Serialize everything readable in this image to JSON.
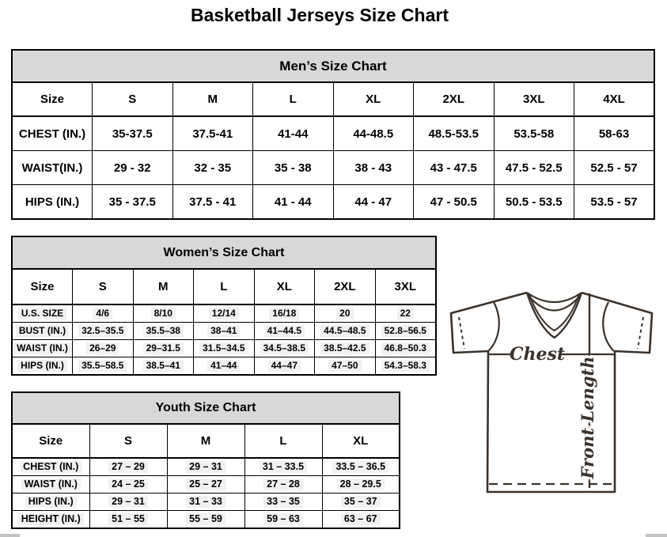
{
  "page_title": "Basketball Jerseys Size Chart",
  "colors": {
    "header_bg": "#d8d8d8",
    "border": "#000000",
    "text": "#000000",
    "diagram": "#3a322c",
    "highlight": "#f1f1f1",
    "scrollbar": "#c2c2c2"
  },
  "tables": {
    "men": {
      "title": "Men’s Size Chart",
      "columns": [
        "Size",
        "S",
        "M",
        "L",
        "XL",
        "2XL",
        "3XL",
        "4XL"
      ],
      "rows": [
        {
          "label": "CHEST (IN.)",
          "values": [
            "35-37.5",
            "37.5-41",
            "41-44",
            "44-48.5",
            "48.5-53.5",
            "53.5-58",
            "58-63"
          ]
        },
        {
          "label": "WAIST(IN.)",
          "values": [
            "29 - 32",
            "32 - 35",
            "35 - 38",
            "38 - 43",
            "43 - 47.5",
            "47.5 - 52.5",
            "52.5 - 57"
          ]
        },
        {
          "label": "HIPS (IN.)",
          "values": [
            "35 - 37.5",
            "37.5 - 41",
            "41 - 44",
            "44 - 47",
            "47 - 50.5",
            "50.5 - 53.5",
            "53.5 - 57"
          ]
        }
      ]
    },
    "women": {
      "title": "Women’s Size Chart",
      "columns": [
        "Size",
        "S",
        "M",
        "L",
        "XL",
        "2XL",
        "3XL"
      ],
      "rows": [
        {
          "label": "U.S. SIZE",
          "values": [
            "4/6",
            "8/10",
            "12/14",
            "16/18",
            "20",
            "22"
          ]
        },
        {
          "label": "BUST (IN.)",
          "values": [
            "32.5–35.5",
            "35.5–38",
            "38–41",
            "41–44.5",
            "44.5–48.5",
            "52.8–56.5"
          ]
        },
        {
          "label": "WAIST (IN.)",
          "values": [
            "26–29",
            "29–31.5",
            "31.5–34.5",
            "34.5–38.5",
            "38.5–42.5",
            "46.8–50.3"
          ]
        },
        {
          "label": "HIPS (IN.)",
          "values": [
            "35.5–58.5",
            "38.5–41",
            "41–44",
            "44–47",
            "47–50",
            "54.3–58.3"
          ]
        }
      ]
    },
    "youth": {
      "title": "Youth Size Chart",
      "columns": [
        "Size",
        "S",
        "M",
        "L",
        "XL"
      ],
      "rows": [
        {
          "label": "CHEST (IN.)",
          "values": [
            "27 – 29",
            "29 – 31",
            "31 – 33.5",
            "33.5 – 36.5"
          ]
        },
        {
          "label": "WAIST (IN.)",
          "values": [
            "24 – 25",
            "25 – 27",
            "27 – 28",
            "28 – 29.5"
          ]
        },
        {
          "label": "HIPS (IN.)",
          "values": [
            "29 – 31",
            "31 – 33",
            "33 – 35",
            "35 – 37"
          ]
        },
        {
          "label": "HEIGHT (IN.)",
          "values": [
            "51 – 55",
            "55 – 59",
            "59 – 63",
            "63 – 67"
          ]
        }
      ]
    }
  },
  "diagram": {
    "chest_label": "Chest",
    "front_length_label": "Front Length"
  }
}
